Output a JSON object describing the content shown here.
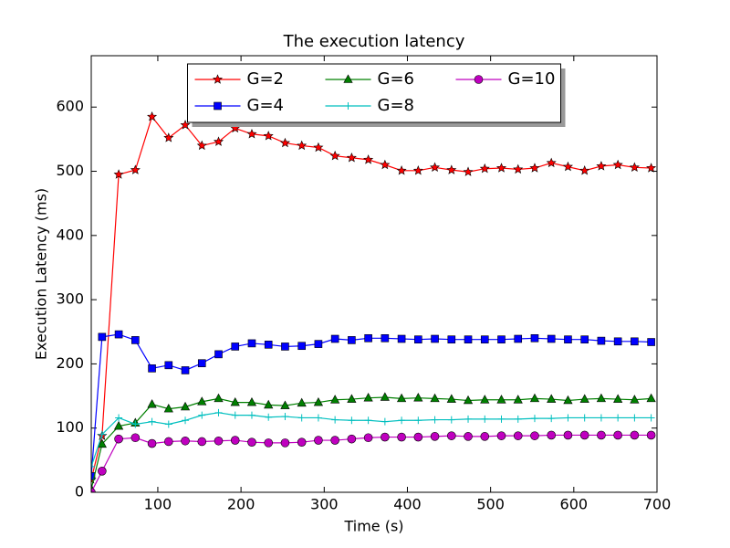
{
  "chart_data": {
    "type": "line",
    "title": "The execution latency",
    "xlabel": "Time (s)",
    "ylabel": "Execution Latency (ms)",
    "x": [
      20,
      33,
      53,
      73,
      93,
      113,
      133,
      153,
      173,
      193,
      213,
      233,
      253,
      273,
      293,
      313,
      333,
      353,
      373,
      393,
      413,
      433,
      453,
      473,
      493,
      513,
      533,
      553,
      573,
      593,
      613,
      633,
      653,
      673,
      693
    ],
    "series": [
      {
        "name": "G=2",
        "color": "#ff0000",
        "marker": "star",
        "values": [
          20,
          88,
          495,
          502,
          585,
          552,
          572,
          540,
          546,
          567,
          558,
          555,
          544,
          540,
          537,
          524,
          521,
          518,
          510,
          501,
          501,
          506,
          502,
          499,
          504,
          505,
          503,
          505,
          513,
          507,
          501,
          508,
          510,
          506,
          505
        ]
      },
      {
        "name": "G=4",
        "color": "#0000ff",
        "marker": "square",
        "values": [
          25,
          242,
          246,
          237,
          193,
          198,
          190,
          201,
          215,
          227,
          232,
          230,
          227,
          228,
          231,
          239,
          237,
          240,
          240,
          239,
          238,
          239,
          238,
          238,
          238,
          238,
          239,
          240,
          239,
          238,
          238,
          236,
          235,
          235,
          234
        ]
      },
      {
        "name": "G=6",
        "color": "#008000",
        "marker": "triangle",
        "values": [
          5,
          75,
          103,
          108,
          137,
          130,
          133,
          141,
          146,
          140,
          140,
          136,
          135,
          139,
          140,
          144,
          145,
          147,
          148,
          146,
          147,
          146,
          145,
          143,
          144,
          144,
          144,
          146,
          145,
          143,
          145,
          146,
          145,
          144,
          146
        ]
      },
      {
        "name": "G=8",
        "color": "#00bfbf",
        "marker": "plus",
        "values": [
          40,
          90,
          116,
          106,
          110,
          106,
          112,
          120,
          124,
          120,
          120,
          117,
          118,
          116,
          116,
          113,
          112,
          112,
          110,
          112,
          112,
          113,
          113,
          114,
          114,
          114,
          114,
          115,
          115,
          116,
          116,
          116,
          116,
          116,
          116
        ]
      },
      {
        "name": "G=10",
        "color": "#bf00bf",
        "marker": "circle",
        "values": [
          0,
          33,
          83,
          85,
          76,
          79,
          80,
          79,
          80,
          81,
          78,
          77,
          77,
          78,
          81,
          81,
          83,
          85,
          86,
          86,
          86,
          87,
          88,
          87,
          87,
          88,
          88,
          88,
          89,
          89,
          89,
          89,
          89,
          89,
          89
        ]
      }
    ],
    "xlim": [
      20,
      700
    ],
    "ylim": [
      0,
      680
    ],
    "xticks": [
      100,
      200,
      300,
      400,
      500,
      600,
      700
    ],
    "yticks": [
      0,
      100,
      200,
      300,
      400,
      500,
      600
    ],
    "legend": {
      "loc": "upper center",
      "ncol": 3
    }
  }
}
